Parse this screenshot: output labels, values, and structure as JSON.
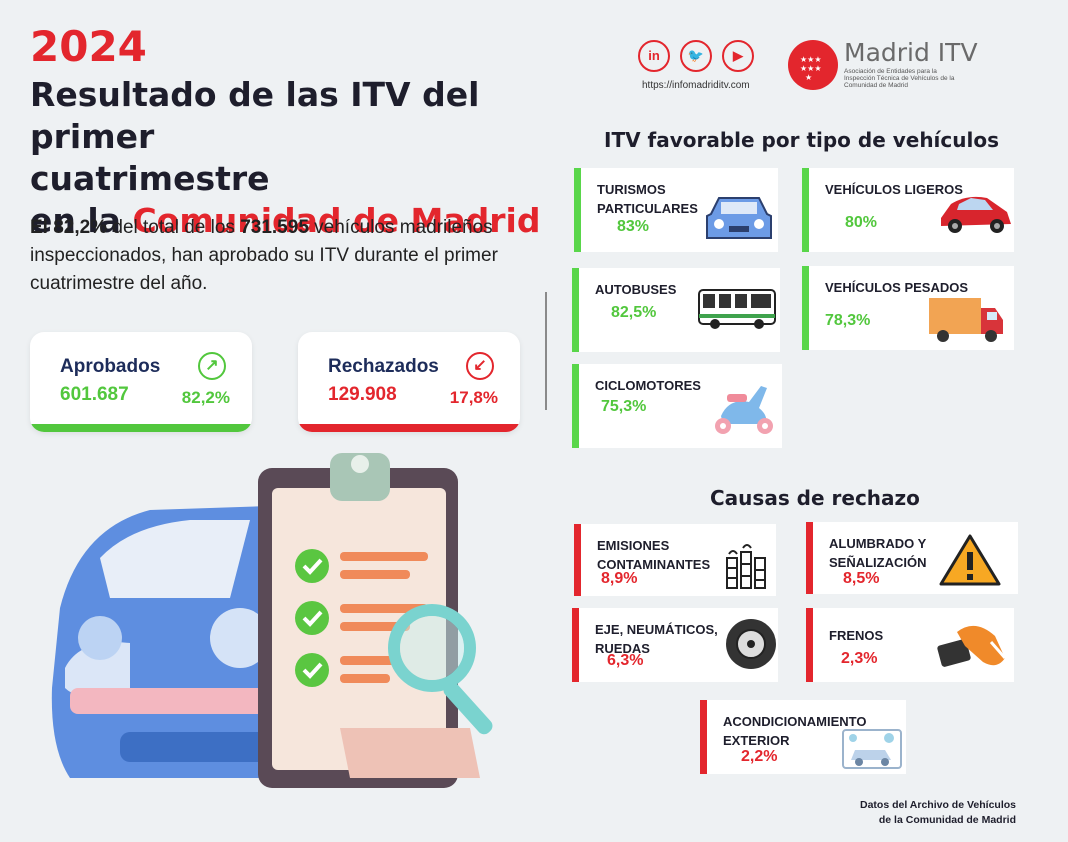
{
  "header": {
    "year": "2024",
    "title_line1": "Resultado de las ITV del primer",
    "title_line2": "cuatrimestre",
    "title_line3_prefix": "en la ",
    "title_line3_highlight": "Comunidad de Madrid"
  },
  "intro": {
    "part1": "El 82,2%",
    "part2": " del total de los ",
    "part3": "731.595",
    "part4": "  vehículos madrileños inspeccionados, han aprobado su ITV durante el primer cuatrimestre del año."
  },
  "stats": {
    "approved": {
      "label": "Aprobados",
      "value": "601.687",
      "percent": "82,2%",
      "icon": "arrow-up-right-icon",
      "color": "#52c73d"
    },
    "rejected": {
      "label": "Rechazados",
      "value": "129.908",
      "percent": "17,8%",
      "icon": "arrow-down-left-icon",
      "color": "#e3262d"
    }
  },
  "social": {
    "items": [
      {
        "icon": "linkedin-icon",
        "glyph": "in"
      },
      {
        "icon": "twitter-icon",
        "glyph": "🐦"
      },
      {
        "icon": "youtube-icon",
        "glyph": "▶"
      }
    ],
    "url": "https://infomadriditv.com"
  },
  "brand": {
    "name": "Madrid ITV",
    "subtitle": "Asociación de Entidades para la Inspección Técnica de Vehículos de la Comunidad de Madrid"
  },
  "favorable": {
    "title": "ITV favorable por tipo de vehículos",
    "items": [
      {
        "name_l1": "TURISMOS",
        "name_l2": "PARTICULARES",
        "percent": "83%",
        "icon": "car-front-icon"
      },
      {
        "name_l1": "VEHÍCULOS LIGEROS",
        "name_l2": "",
        "percent": "80%",
        "icon": "red-car-icon"
      },
      {
        "name_l1": "AUTOBUSES",
        "name_l2": "",
        "percent": "82,5%",
        "icon": "bus-icon"
      },
      {
        "name_l1": "VEHÍCULOS PESADOS",
        "name_l2": "",
        "percent": "78,3%",
        "icon": "truck-icon"
      },
      {
        "name_l1": "CICLOMOTORES",
        "name_l2": "",
        "percent": "75,3%",
        "icon": "scooter-icon"
      }
    ]
  },
  "rejection": {
    "title": "Causas de rechazo",
    "items": [
      {
        "name_l1": "EMISIONES",
        "name_l2": "CONTAMINANTES",
        "percent": "8,9%",
        "icon": "factory-icon"
      },
      {
        "name_l1": "ALUMBRADO Y",
        "name_l2": "SEÑALIZACIÓN",
        "percent": "8,5%",
        "icon": "warning-icon"
      },
      {
        "name_l1": "EJE, NEUMÁTICOS,",
        "name_l2": "RUEDAS",
        "percent": "6,3%",
        "icon": "tire-icon"
      },
      {
        "name_l1": "FRENOS",
        "name_l2": "",
        "percent": "2,3%",
        "icon": "brake-pedal-icon"
      },
      {
        "name_l1": "ACONDICIONAMIENTO",
        "name_l2": "EXTERIOR",
        "percent": "2,2%",
        "icon": "car-wash-icon"
      }
    ]
  },
  "source": {
    "line1": "Datos del Archivo de Vehículos",
    "line2": "de la Comunidad de Madrid"
  }
}
